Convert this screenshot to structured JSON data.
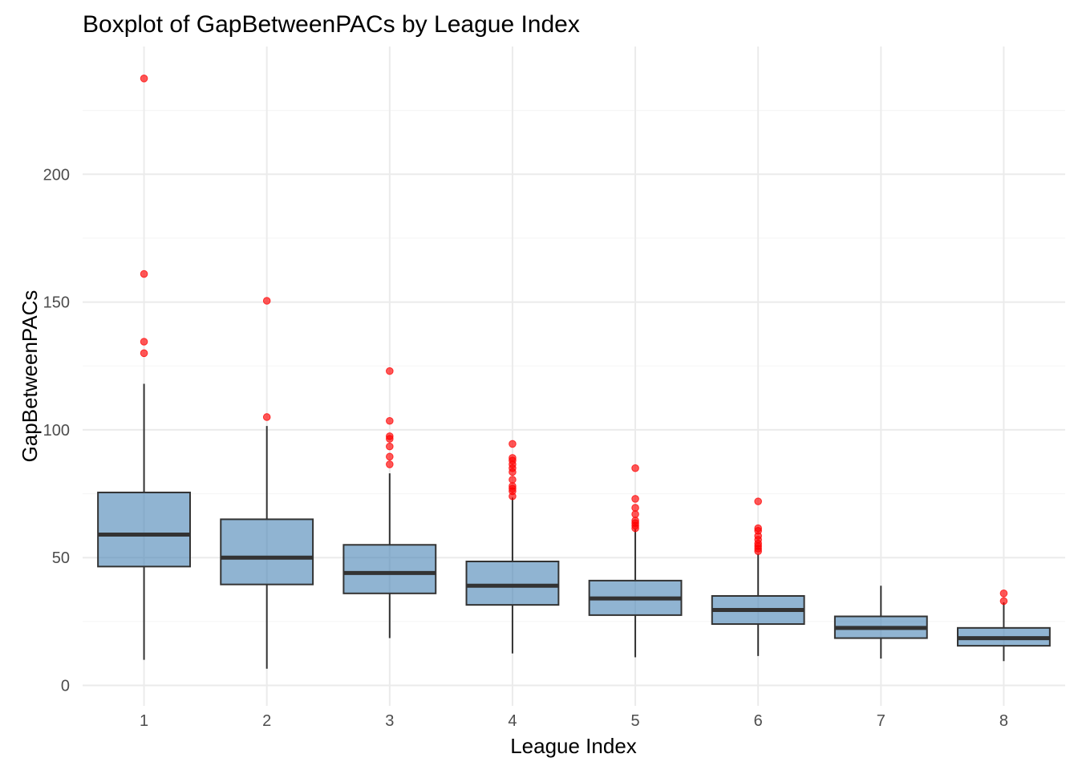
{
  "chart_data": {
    "type": "boxplot",
    "title": "Boxplot of GapBetweenPACs by League Index",
    "xlabel": "League Index",
    "ylabel": "GapBetweenPACs",
    "ylim": [
      -8,
      250
    ],
    "y_ticks": [
      0,
      50,
      100,
      150,
      200
    ],
    "y_minor_ticks": [
      25,
      75,
      125,
      175,
      225
    ],
    "grid": true,
    "colors": {
      "box_fill": "#4682b4",
      "box_fill_opacity": 0.6,
      "box_stroke": "#333333",
      "outlier": "#ff0000",
      "grid_major": "#ebebeb",
      "grid_minor": "#f5f5f5"
    },
    "categories": [
      "1",
      "2",
      "3",
      "4",
      "5",
      "6",
      "7",
      "8"
    ],
    "boxes": [
      {
        "category": "1",
        "whisker_low": 10,
        "q1": 46.5,
        "median": 59,
        "q3": 75.5,
        "whisker_high": 118,
        "outliers": [
          237.5,
          161,
          134.5,
          130
        ]
      },
      {
        "category": "2",
        "whisker_low": 6.5,
        "q1": 39.5,
        "median": 50,
        "q3": 65,
        "whisker_high": 101.5,
        "outliers": [
          150.5,
          105
        ]
      },
      {
        "category": "3",
        "whisker_low": 18.5,
        "q1": 36,
        "median": 44,
        "q3": 55,
        "whisker_high": 83,
        "outliers": [
          123,
          103.5,
          97.5,
          96.5,
          93.5,
          89.5,
          86.5
        ]
      },
      {
        "category": "4",
        "whisker_low": 12.5,
        "q1": 31.5,
        "median": 39,
        "q3": 48.5,
        "whisker_high": 73.5,
        "outliers": [
          94.5,
          89,
          88,
          86.5,
          85,
          83.5,
          80.5,
          78,
          77,
          76,
          74
        ]
      },
      {
        "category": "5",
        "whisker_low": 11,
        "q1": 27.5,
        "median": 34,
        "q3": 41,
        "whisker_high": 61,
        "outliers": [
          85,
          73,
          69.5,
          67,
          64.5,
          63.5,
          62.5,
          61.5
        ]
      },
      {
        "category": "6",
        "whisker_low": 11.5,
        "q1": 24,
        "median": 29.5,
        "q3": 35,
        "whisker_high": 51.5,
        "outliers": [
          72,
          61.5,
          60.5,
          58.5,
          57,
          55.5,
          54.5,
          53.5,
          52.5
        ]
      },
      {
        "category": "7",
        "whisker_low": 10.5,
        "q1": 18.5,
        "median": 22.5,
        "q3": 27,
        "whisker_high": 39,
        "outliers": []
      },
      {
        "category": "8",
        "whisker_low": 9.5,
        "q1": 15.5,
        "median": 18.5,
        "q3": 22.5,
        "whisker_high": 32.5,
        "outliers": [
          36,
          33
        ]
      }
    ]
  }
}
